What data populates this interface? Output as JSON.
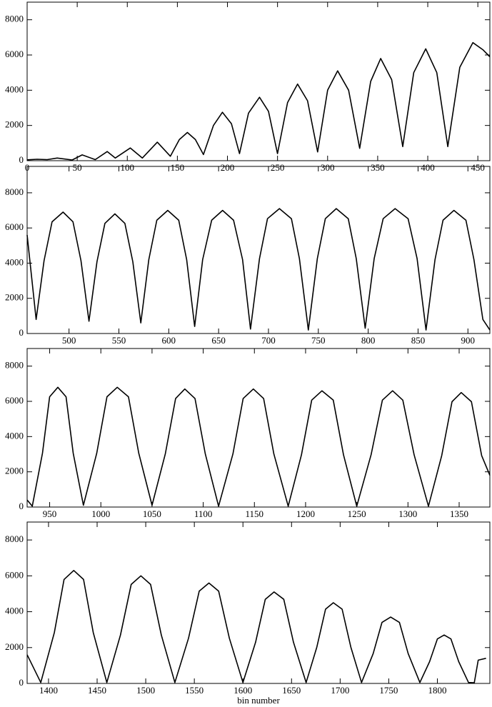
{
  "chart_data": [
    {
      "type": "line",
      "xlim": [
        0,
        462
      ],
      "ylim": [
        0,
        9000
      ],
      "xticks": [
        0,
        50,
        100,
        150,
        200,
        250,
        300,
        350,
        400,
        450
      ],
      "yticks": [
        0,
        2000,
        4000,
        6000,
        8000
      ],
      "x": [
        0,
        10,
        20,
        30,
        45,
        55,
        68,
        80,
        88,
        103,
        115,
        130,
        143,
        152,
        160,
        168,
        176,
        186,
        195,
        204,
        212,
        221,
        232,
        241,
        250,
        260,
        270,
        280,
        290,
        300,
        310,
        321,
        332,
        343,
        353,
        364,
        375,
        386,
        398,
        409,
        420,
        432,
        445,
        455,
        462
      ],
      "series": [
        {
          "color": "#000000",
          "values": [
            50,
            80,
            60,
            150,
            40,
            330,
            60,
            520,
            150,
            720,
            150,
            1050,
            250,
            1200,
            1600,
            1200,
            350,
            2000,
            2750,
            2100,
            400,
            2700,
            3600,
            2800,
            400,
            3300,
            4350,
            3400,
            500,
            4000,
            5100,
            4000,
            700,
            4500,
            5800,
            4600,
            800,
            5000,
            6350,
            5000,
            800,
            5300,
            6700,
            6300,
            5900
          ]
        }
      ]
    },
    {
      "type": "line",
      "xlim": [
        458,
        922
      ],
      "ylim": [
        0,
        9500
      ],
      "xticks": [
        500,
        550,
        600,
        650,
        700,
        750,
        800,
        850,
        900
      ],
      "yticks": [
        0,
        2000,
        4000,
        6000,
        8000
      ],
      "x": [
        458,
        467,
        475,
        483,
        494,
        504,
        512,
        520,
        528,
        536,
        546,
        556,
        564,
        572,
        580,
        588,
        599,
        610,
        618,
        626,
        634,
        643,
        654,
        665,
        674,
        682,
        691,
        699,
        711,
        723,
        731,
        740,
        749,
        757,
        768,
        780,
        788,
        797,
        806,
        815,
        827,
        840,
        849,
        858,
        867,
        875,
        886,
        898,
        906,
        915,
        922
      ],
      "series": [
        {
          "color": "#000000",
          "values": [
            5600,
            800,
            4140,
            6350,
            6900,
            6350,
            4140,
            700,
            4080,
            6260,
            6800,
            6260,
            4080,
            600,
            4200,
            6440,
            7000,
            6440,
            4200,
            400,
            4200,
            6440,
            7000,
            6440,
            4200,
            250,
            4260,
            6530,
            7100,
            6530,
            4260,
            200,
            4260,
            6530,
            7100,
            6530,
            4260,
            300,
            4260,
            6530,
            7100,
            6530,
            4260,
            200,
            4200,
            6440,
            7000,
            6440,
            4200,
            800,
            200
          ]
        }
      ]
    },
    {
      "type": "line",
      "xlim": [
        928,
        1380
      ],
      "ylim": [
        0,
        9000
      ],
      "xticks": [
        950,
        1000,
        1050,
        1100,
        1150,
        1200,
        1250,
        1300,
        1350
      ],
      "yticks": [
        0,
        2000,
        4000,
        6000,
        8000
      ],
      "x": [
        928,
        933,
        943,
        950,
        958,
        966,
        973,
        983,
        996,
        1006,
        1016,
        1027,
        1037,
        1050,
        1063,
        1073,
        1082,
        1092,
        1102,
        1115,
        1129,
        1139,
        1149,
        1159,
        1169,
        1183,
        1196,
        1206,
        1216,
        1227,
        1237,
        1250,
        1264,
        1275,
        1285,
        1295,
        1306,
        1320,
        1333,
        1343,
        1352,
        1362,
        1372,
        1380
      ],
      "series": [
        {
          "color": "#000000",
          "values": [
            400,
            50,
            3060,
            6260,
            6800,
            6260,
            3060,
            100,
            3060,
            6260,
            6800,
            6260,
            3060,
            100,
            3015,
            6160,
            6700,
            6160,
            3015,
            50,
            3015,
            6160,
            6700,
            6160,
            3015,
            50,
            2970,
            6070,
            6600,
            6070,
            2970,
            50,
            2970,
            6070,
            6600,
            6070,
            2970,
            50,
            2925,
            5980,
            6500,
            5980,
            2925,
            1800
          ]
        }
      ]
    },
    {
      "type": "line",
      "xlim": [
        1378,
        1854
      ],
      "ylim": [
        0,
        9000
      ],
      "xticks": [
        1400,
        1450,
        1500,
        1550,
        1600,
        1650,
        1700,
        1750,
        1800
      ],
      "yticks": [
        0,
        2000,
        4000,
        6000,
        8000
      ],
      "x_label": "bin number",
      "x": [
        1378,
        1392,
        1406,
        1416,
        1426,
        1436,
        1446,
        1460,
        1474,
        1485,
        1495,
        1505,
        1516,
        1530,
        1544,
        1555,
        1565,
        1575,
        1586,
        1600,
        1613,
        1623,
        1632,
        1642,
        1652,
        1665,
        1676,
        1685,
        1693,
        1702,
        1711,
        1722,
        1734,
        1743,
        1752,
        1761,
        1770,
        1782,
        1792,
        1800,
        1807,
        1814,
        1822,
        1832,
        1838,
        1842,
        1850
      ],
      "series": [
        {
          "color": "#000000",
          "values": [
            1600,
            50,
            2835,
            5800,
            6300,
            5800,
            2835,
            50,
            2700,
            5520,
            6000,
            5520,
            2700,
            50,
            2520,
            5150,
            5600,
            5150,
            2520,
            50,
            2295,
            4690,
            5100,
            4690,
            2295,
            50,
            2025,
            4140,
            4500,
            4140,
            2025,
            50,
            1665,
            3400,
            3700,
            3400,
            1665,
            50,
            1215,
            2480,
            2700,
            2480,
            1215,
            50,
            40,
            1300,
            1400
          ]
        }
      ]
    }
  ]
}
